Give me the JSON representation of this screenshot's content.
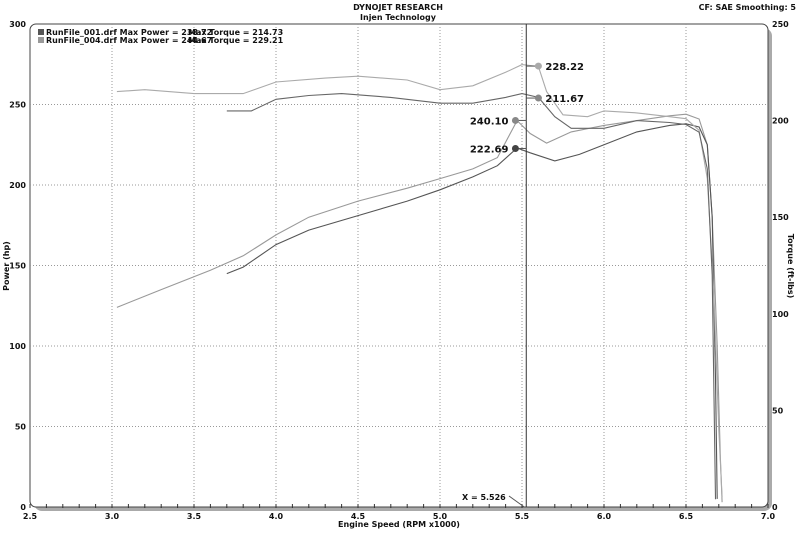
{
  "chart_data": {
    "type": "line",
    "title": "DYNOJET RESEARCH",
    "subtitle": "Injen Technology",
    "header_right": "CF: SAE  Smoothing: 5",
    "xlabel": "Engine Speed (RPM x1000)",
    "ylabel": "Power (hp)",
    "y2label": "Torque (ft-lbs)",
    "xlim": [
      2.5,
      7.0
    ],
    "ylim": [
      0,
      300
    ],
    "y2lim": [
      0,
      250
    ],
    "xticks": [
      "2.5",
      "3.0",
      "3.5",
      "4.0",
      "4.5",
      "5.0",
      "5.5",
      "6.0",
      "6.5",
      "7.0"
    ],
    "yticks": [
      "0",
      "50",
      "100",
      "150",
      "200",
      "250",
      "300"
    ],
    "y2ticks": [
      "0",
      "50",
      "100",
      "150",
      "200",
      "250"
    ],
    "grid": true,
    "legend": [
      {
        "text": "RunFile_001.drf Max Power = 238.72",
        "torque_text": "Max Torque = 214.73",
        "color": "#555555"
      },
      {
        "text": "RunFile_004.drf Max Power = 244.67",
        "torque_text": "Max Torque = 229.21",
        "color": "#999999"
      }
    ],
    "cursor": {
      "x": 5.526,
      "label": "X = 5.526"
    },
    "series": [
      {
        "axis": "left",
        "color": "#999999",
        "x": [
          3.03,
          3.3,
          3.6,
          3.8,
          4.0,
          4.2,
          4.5,
          4.8,
          5.0,
          5.2,
          5.35,
          5.47,
          5.55,
          5.65,
          5.8,
          6.0,
          6.2,
          6.4,
          6.5,
          6.58,
          6.63,
          6.66,
          6.69,
          6.71,
          6.72
        ],
        "y": [
          124,
          135,
          147,
          156,
          169,
          180,
          190,
          198,
          204,
          210,
          217,
          240,
          232,
          226,
          233,
          237,
          240,
          243,
          244,
          241,
          225,
          180,
          100,
          30,
          3
        ]
      },
      {
        "axis": "left",
        "color": "#555555",
        "x": [
          3.7,
          3.8,
          4.0,
          4.2,
          4.5,
          4.8,
          5.0,
          5.2,
          5.35,
          5.47,
          5.55,
          5.7,
          5.85,
          6.0,
          6.2,
          6.4,
          6.5,
          6.58,
          6.63,
          6.66,
          6.68,
          6.69
        ],
        "y": [
          145,
          149,
          163,
          172,
          181,
          190,
          197,
          205,
          212,
          223,
          220,
          215,
          219,
          225,
          233,
          237,
          238,
          236,
          225,
          180,
          80,
          5
        ]
      },
      {
        "axis": "right",
        "color": "#aaaaaa",
        "x": [
          3.03,
          3.2,
          3.5,
          3.8,
          4.0,
          4.3,
          4.5,
          4.8,
          5.0,
          5.2,
          5.4,
          5.5,
          5.6,
          5.65,
          5.75,
          5.9,
          6.0,
          6.2,
          6.4,
          6.5,
          6.58,
          6.63,
          6.67,
          6.7,
          6.72
        ],
        "y": [
          215,
          216,
          214,
          214,
          220,
          222,
          223,
          221,
          216,
          218,
          225,
          229,
          228,
          215,
          203,
          202,
          205,
          204,
          202,
          201,
          195,
          170,
          110,
          40,
          5
        ]
      },
      {
        "axis": "right",
        "color": "#666666",
        "x": [
          3.7,
          3.85,
          4.0,
          4.2,
          4.4,
          4.7,
          5.0,
          5.2,
          5.4,
          5.5,
          5.6,
          5.7,
          5.8,
          6.0,
          6.2,
          6.4,
          6.5,
          6.58,
          6.63,
          6.66,
          6.68
        ],
        "y": [
          205,
          205,
          211,
          213,
          214,
          212,
          209,
          209,
          212,
          214,
          212,
          202,
          196,
          196,
          200,
          199,
          198,
          194,
          175,
          120,
          4
        ]
      }
    ],
    "markers": [
      {
        "x": 5.6,
        "axis": "right",
        "value": 228.22,
        "label": "228.22",
        "color": "#aaaaaa",
        "side": "right"
      },
      {
        "x": 5.6,
        "axis": "right",
        "value": 211.67,
        "label": "211.67",
        "color": "#888888",
        "side": "right"
      },
      {
        "x": 5.46,
        "axis": "left",
        "value": 240.1,
        "label": "240.10",
        "color": "#888888",
        "side": "left"
      },
      {
        "x": 5.46,
        "axis": "left",
        "value": 222.69,
        "label": "222.69",
        "color": "#444444",
        "side": "left"
      }
    ]
  }
}
